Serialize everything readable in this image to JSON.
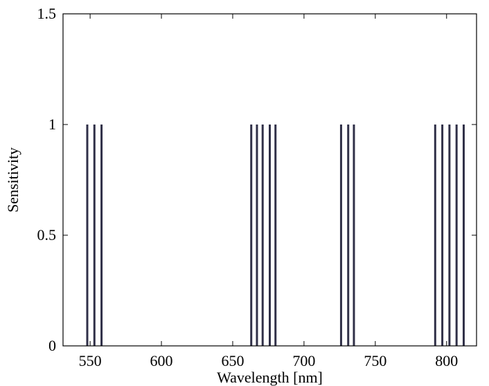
{
  "chart_data": {
    "type": "bar",
    "title": "",
    "xlabel": "Wavelength [nm]",
    "ylabel": "Sensitivity",
    "xlim": [
      531,
      821
    ],
    "ylim": [
      0,
      1.5
    ],
    "xticks": [
      550,
      600,
      650,
      700,
      750,
      800
    ],
    "yticks": [
      0,
      0.5,
      1,
      1.5
    ],
    "ytick_labels": [
      "0",
      "0.5",
      "1",
      "1.5"
    ],
    "grid": false,
    "legend": "none",
    "bar_color": "#303048",
    "series": [
      {
        "x": [
          548,
          553,
          558,
          663,
          667,
          671,
          676,
          680,
          726,
          731,
          735,
          792,
          797,
          802,
          807,
          812
        ],
        "values": [
          1,
          1,
          1,
          1,
          1,
          1,
          1,
          1,
          1,
          1,
          1,
          1,
          1,
          1,
          1,
          1
        ]
      }
    ]
  }
}
